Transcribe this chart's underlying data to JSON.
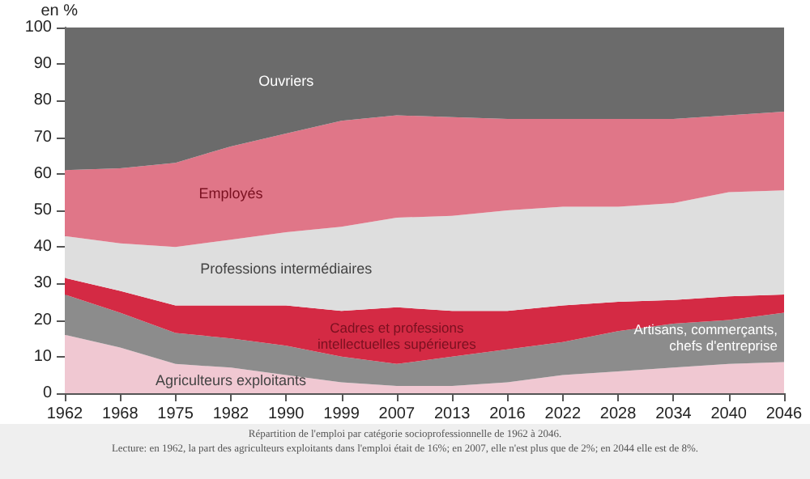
{
  "chart_data": {
    "type": "area",
    "stacked": true,
    "ylabel": "en %",
    "categories": [
      "1962",
      "1968",
      "1975",
      "1982",
      "1990",
      "1999",
      "2007",
      "2013",
      "2016",
      "2022",
      "2028",
      "2034",
      "2040",
      "2046"
    ],
    "series": [
      {
        "name": "Agriculteurs exploitants",
        "color": "#f0c8d2",
        "values": [
          16,
          12.5,
          8,
          7,
          5,
          3,
          2,
          2,
          3,
          5,
          6,
          7,
          8,
          8.5
        ]
      },
      {
        "name": "Artisans, commerçants, chefs d'entreprise",
        "color": "#8c8c8c",
        "values": [
          11,
          9.5,
          8.5,
          8,
          8,
          7,
          6,
          8,
          9,
          9,
          11,
          12,
          12,
          13.5
        ]
      },
      {
        "name": "Cadres et professions intellectuelles supérieures",
        "color": "#d42a44",
        "values": [
          4.5,
          6,
          7.5,
          9,
          11,
          12.5,
          15.5,
          12.5,
          10.5,
          10,
          8,
          6.5,
          6.5,
          5
        ]
      },
      {
        "name": "Professions intermédiaires",
        "color": "#dedede",
        "values": [
          11.5,
          13,
          16,
          18,
          20,
          23,
          24.5,
          26,
          27.5,
          27,
          26,
          26.5,
          28.5,
          28.5
        ]
      },
      {
        "name": "Employés",
        "color": "#e07688",
        "values": [
          18,
          20.5,
          23,
          25.5,
          27,
          29,
          28,
          27,
          25,
          24,
          24,
          23,
          21,
          21.5
        ]
      },
      {
        "name": "Ouvriers",
        "color": "#6b6b6b",
        "values": [
          39,
          38.5,
          37,
          32.5,
          29,
          25.5,
          24,
          24.5,
          25,
          25,
          25,
          25,
          24,
          23
        ]
      }
    ],
    "ylim": [
      0,
      100
    ],
    "yticks": [
      0,
      10,
      20,
      30,
      40,
      50,
      60,
      70,
      80,
      90,
      100
    ],
    "grid": false,
    "legend": false,
    "annotations": [
      "Répartition de l'emploi par catégorie socioprofessionnelle  de 1962 à 2046.",
      "Lecture:  en 1962, la part des agriculteurs  exploitants dans l'emploi était de 16%; en 2007, elle n'est plus que de 2%; en 2044 elle est de 8%."
    ]
  }
}
